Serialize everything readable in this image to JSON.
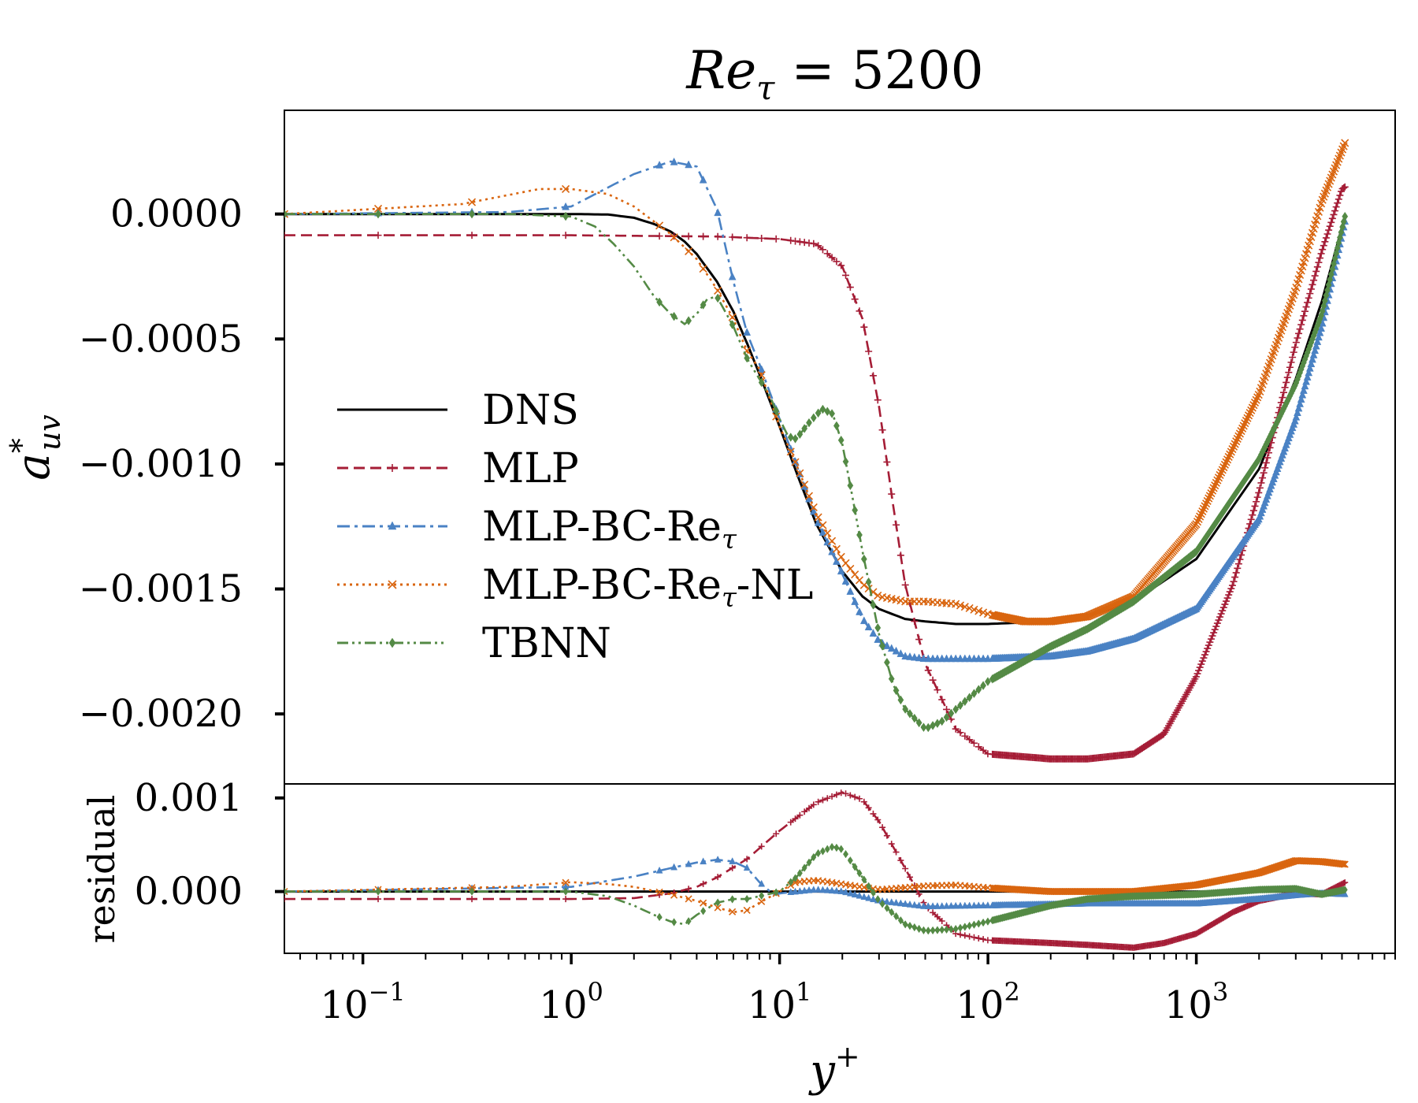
{
  "chart_data": [
    {
      "panel": "main",
      "type": "line",
      "title": "Re_τ = 5200",
      "title_parts": {
        "base": "Re",
        "sub": "τ",
        "rest": " = 5200"
      },
      "xlabel": "y+",
      "xlabel_parts": {
        "base": "y",
        "sup": "+"
      },
      "ylabel": "a*uv",
      "ylabel_parts": {
        "base": "a",
        "sup": "*",
        "sub": "uv"
      },
      "xscale": "log",
      "xlim": [
        0.042,
        9000
      ],
      "ylim": [
        -0.00228,
        0.000415
      ],
      "grid": false,
      "yticks": [
        0.0,
        -0.0005,
        -0.001,
        -0.0015,
        -0.002
      ],
      "yticklabels": [
        "0.0000",
        "−0.0005",
        "−0.0010",
        "−0.0015",
        "−0.0020"
      ],
      "legend_position": "center-left",
      "series": [
        {
          "name": "DNS",
          "color": "#000000",
          "marker": "none",
          "x": [
            0.042,
            0.5,
            1,
            1.5,
            2,
            2.5,
            3,
            3.5,
            4,
            5,
            6,
            7,
            8,
            9,
            10,
            12,
            15,
            20,
            25,
            30,
            40,
            50,
            70,
            100,
            200,
            300,
            500,
            1000,
            2000,
            3000,
            4000,
            5200
          ],
          "y": [
            0,
            0,
            0,
            -2e-06,
            -1.5e-05,
            -4e-05,
            -7e-05,
            -0.00011,
            -0.00016,
            -0.00027,
            -0.00039,
            -0.00052,
            -0.00064,
            -0.00075,
            -0.00085,
            -0.00103,
            -0.00124,
            -0.00143,
            -0.00153,
            -0.00158,
            -0.00162,
            -0.00163,
            -0.00164,
            -0.00164,
            -0.00163,
            -0.00161,
            -0.00155,
            -0.00138,
            -0.00102,
            -0.00066,
            -0.00035,
            0
          ]
        },
        {
          "name": "MLP",
          "color": "#a51d36",
          "marker": "plus",
          "x": [
            0.042,
            1,
            5,
            10,
            15,
            20,
            25,
            30,
            35,
            40,
            50,
            70,
            100,
            200,
            300,
            500,
            700,
            1000,
            1500,
            2000,
            3000,
            4000,
            5000,
            5200
          ],
          "y": [
            -8.5e-05,
            -8.5e-05,
            -9e-05,
            -0.0001,
            -0.00012,
            -0.00021,
            -0.00042,
            -0.00077,
            -0.00116,
            -0.00148,
            -0.0018,
            -0.00206,
            -0.00216,
            -0.00218,
            -0.00218,
            -0.00216,
            -0.00208,
            -0.00185,
            -0.00148,
            -0.00111,
            -0.00052,
            -0.00015,
            0.0001,
            0.00011
          ]
        },
        {
          "name": "MLP-BC-Re_τ",
          "color": "#4a82c4",
          "marker": "triangle",
          "x": [
            0.042,
            0.5,
            1,
            2,
            3,
            4,
            5,
            6,
            7,
            8,
            10,
            15,
            20,
            25,
            30,
            40,
            50,
            70,
            100,
            200,
            300,
            500,
            1000,
            2000,
            3000,
            4000,
            5200
          ],
          "y": [
            0,
            8e-06,
            3e-05,
            0.00016,
            0.00021,
            0.00019,
            2e-05,
            -0.00027,
            -0.00048,
            -0.0006,
            -0.00082,
            -0.00122,
            -0.00144,
            -0.00162,
            -0.00171,
            -0.00177,
            -0.00178,
            -0.00178,
            -0.00178,
            -0.00177,
            -0.00175,
            -0.0017,
            -0.00158,
            -0.00122,
            -0.00082,
            -0.00045,
            -2e-05
          ]
        },
        {
          "name": "MLP-BC-Re_τ-NL",
          "color": "#d9650f",
          "marker": "x",
          "x": [
            0.042,
            0.3,
            0.7,
            1,
            1.5,
            2,
            3,
            4,
            5,
            6,
            7,
            8,
            10,
            12,
            15,
            20,
            25,
            30,
            40,
            50,
            70,
            100,
            150,
            200,
            300,
            500,
            1000,
            2000,
            3000,
            4000,
            5200
          ],
          "y": [
            0,
            4e-05,
            0.0001,
            0.0001,
            8e-05,
            3e-05,
            -8e-05,
            -0.00018,
            -0.0003,
            -0.00042,
            -0.00055,
            -0.00062,
            -0.00085,
            -0.001,
            -0.0012,
            -0.00138,
            -0.00148,
            -0.00153,
            -0.00155,
            -0.00155,
            -0.00156,
            -0.0016,
            -0.00163,
            -0.00163,
            -0.00161,
            -0.00153,
            -0.00124,
            -0.00072,
            -0.0003,
            5e-05,
            0.00029
          ]
        },
        {
          "name": "TBNN",
          "color": "#548a45",
          "marker": "diamond",
          "x": [
            0.042,
            0.5,
            1,
            1.3,
            1.6,
            2,
            2.5,
            3,
            3.5,
            4,
            4.5,
            5,
            6,
            7,
            8,
            9,
            10,
            11,
            12,
            14,
            16,
            18,
            20,
            22,
            25,
            30,
            35,
            40,
            50,
            60,
            80,
            100,
            200,
            300,
            500,
            1000,
            2000,
            3000,
            4000,
            5200
          ],
          "y": [
            0,
            0,
            -1e-05,
            -5e-05,
            -0.00012,
            -0.00021,
            -0.00033,
            -0.0004,
            -0.00044,
            -0.0004,
            -0.00034,
            -0.00033,
            -0.00045,
            -0.00058,
            -0.00066,
            -0.00073,
            -0.00082,
            -0.00089,
            -0.0009,
            -0.00083,
            -0.00078,
            -0.0008,
            -0.00092,
            -0.0011,
            -0.00135,
            -0.00168,
            -0.00188,
            -0.00198,
            -0.00206,
            -0.00203,
            -0.00194,
            -0.00187,
            -0.00173,
            -0.00166,
            -0.00155,
            -0.00135,
            -0.00098,
            -0.00068,
            -0.0004,
            0
          ]
        }
      ]
    },
    {
      "panel": "residual",
      "type": "line",
      "ylabel": "residual",
      "xscale": "log",
      "xlim": [
        0.042,
        9000
      ],
      "ylim": [
        -0.00066,
        0.00115
      ],
      "grid": false,
      "yticks": [
        0.001,
        0.0
      ],
      "yticklabels": [
        "0.001",
        "0.000"
      ],
      "xticks": [
        0.1,
        1,
        10,
        100,
        1000
      ],
      "xticklabels": [
        {
          "base": "10",
          "exp": "−1"
        },
        {
          "base": "10",
          "exp": "0"
        },
        {
          "base": "10",
          "exp": "1"
        },
        {
          "base": "10",
          "exp": "2"
        },
        {
          "base": "10",
          "exp": "3"
        }
      ],
      "series": [
        {
          "name": "DNS",
          "color": "#000000",
          "marker": "none",
          "x": [
            0.042,
            5200
          ],
          "y": [
            0,
            0
          ]
        },
        {
          "name": "MLP",
          "color": "#a51d36",
          "marker": "plus",
          "x": [
            0.042,
            1,
            2,
            3,
            4,
            5,
            7,
            10,
            15,
            20,
            25,
            30,
            40,
            50,
            70,
            100,
            200,
            300,
            500,
            700,
            1000,
            1500,
            2000,
            3000,
            4000,
            5200
          ],
          "y": [
            -8e-05,
            -8e-05,
            -7e-05,
            -2e-05,
            5e-05,
            0.00015,
            0.00035,
            0.00065,
            0.00095,
            0.00106,
            0.00098,
            0.00075,
            0.00025,
            -0.00015,
            -0.00045,
            -0.00052,
            -0.00055,
            -0.00057,
            -0.0006,
            -0.00055,
            -0.00045,
            -0.00022,
            -0.0001,
            -2e-05,
            -3e-05,
            0.0001
          ]
        },
        {
          "name": "MLP-BC-Re_τ",
          "color": "#4a82c4",
          "marker": "triangle",
          "x": [
            0.042,
            1,
            2,
            3,
            4,
            5,
            6,
            7,
            8,
            9,
            10,
            15,
            20,
            30,
            50,
            100,
            300,
            1000,
            2000,
            3000,
            4000,
            5200
          ],
          "y": [
            0,
            5e-05,
            0.00016,
            0.00025,
            0.00031,
            0.00034,
            0.00032,
            0.00025,
            0.0001,
            0.0,
            -2e-05,
            2e-05,
            0.0,
            -0.0001,
            -0.00016,
            -0.00015,
            -0.00013,
            -0.00013,
            -8e-05,
            -4e-05,
            -2e-05,
            -3e-05
          ]
        },
        {
          "name": "MLP-BC-Re_τ-NL",
          "color": "#d9650f",
          "marker": "x",
          "x": [
            0.042,
            0.5,
            1,
            1.5,
            2,
            3,
            4,
            5,
            6,
            7,
            8,
            10,
            12,
            15,
            20,
            30,
            50,
            70,
            100,
            200,
            500,
            1000,
            2000,
            3000,
            4000,
            5200
          ],
          "y": [
            0,
            5e-05,
            0.0001,
            8e-05,
            5e-05,
            -3e-05,
            -0.0001,
            -0.00017,
            -0.00022,
            -0.0002,
            -0.00012,
            0.0,
            0.0001,
            0.00012,
            8e-05,
            2e-05,
            6e-05,
            7e-05,
            4e-05,
            0.0,
            0.0,
            7e-05,
            0.0002,
            0.00033,
            0.00032,
            0.00029
          ]
        },
        {
          "name": "TBNN",
          "color": "#548a45",
          "marker": "diamond",
          "x": [
            0.042,
            1,
            1.5,
            2,
            2.5,
            3,
            3.5,
            4,
            5,
            6,
            7,
            8,
            10,
            12,
            15,
            18,
            20,
            25,
            30,
            40,
            50,
            70,
            100,
            200,
            300,
            500,
            1000,
            2000,
            3000,
            4000,
            5200
          ],
          "y": [
            0,
            0,
            -5e-05,
            -0.00015,
            -0.00025,
            -0.00032,
            -0.00035,
            -0.00025,
            -0.00012,
            -8e-05,
            -8e-05,
            -5e-05,
            0.0,
            0.00015,
            0.0004,
            0.00048,
            0.00045,
            0.00015,
            -0.0001,
            -0.00035,
            -0.00042,
            -0.0004,
            -0.00032,
            -0.00015,
            -8e-05,
            -5e-05,
            -3e-05,
            2e-05,
            3e-05,
            -3e-05,
            2e-05
          ]
        }
      ]
    }
  ],
  "legend": {
    "entries": [
      {
        "label": "DNS",
        "color": "#000000",
        "dash": "solid",
        "marker": "none"
      },
      {
        "label": "MLP",
        "color": "#a51d36",
        "dash": "dashed",
        "marker": "plus"
      },
      {
        "label": "MLP-BC-Re",
        "sub": "τ",
        "suffix": "",
        "color": "#4a82c4",
        "dash": "dashdot",
        "marker": "triangle"
      },
      {
        "label": "MLP-BC-Re",
        "sub": "τ",
        "suffix": "-NL",
        "color": "#d9650f",
        "dash": "dotted",
        "marker": "x"
      },
      {
        "label": "TBNN",
        "color": "#548a45",
        "dash": "dashdotdot",
        "marker": "diamond"
      }
    ]
  }
}
